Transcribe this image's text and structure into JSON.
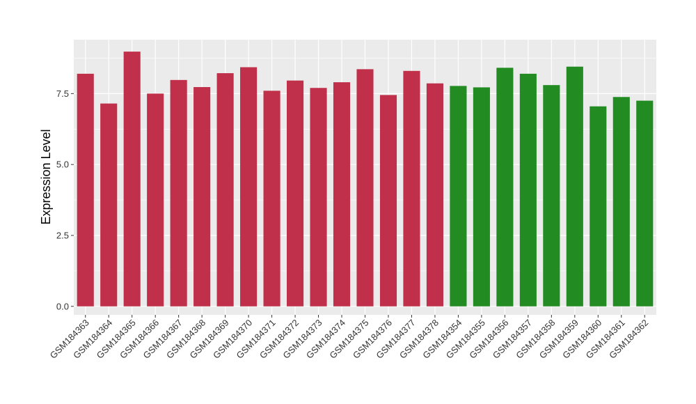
{
  "chart_data": {
    "type": "bar",
    "title": "",
    "xlabel": "",
    "ylabel": "Expression Level",
    "ylim": [
      -0.3,
      9.4
    ],
    "yticks": [
      "0.0",
      "2.5",
      "5.0",
      "7.5"
    ],
    "grid": true,
    "legend": "none",
    "colors": {
      "group1": "#C0304A",
      "group2": "#228B22",
      "panel": "#EBEBEB",
      "gridline": "#FFFFFF"
    },
    "categories": [
      "GSM184363",
      "GSM184364",
      "GSM184365",
      "GSM184366",
      "GSM184367",
      "GSM184368",
      "GSM184369",
      "GSM184370",
      "GSM184371",
      "GSM184372",
      "GSM184373",
      "GSM184374",
      "GSM184375",
      "GSM184376",
      "GSM184377",
      "GSM184378",
      "GSM184354",
      "GSM184355",
      "GSM184356",
      "GSM184357",
      "GSM184358",
      "GSM184359",
      "GSM184360",
      "GSM184361",
      "GSM184362"
    ],
    "values": [
      8.2,
      7.15,
      8.98,
      7.5,
      7.98,
      7.73,
      8.22,
      8.43,
      7.6,
      7.96,
      7.7,
      7.9,
      8.36,
      7.45,
      8.3,
      7.86,
      7.77,
      7.72,
      8.41,
      8.2,
      7.8,
      8.45,
      7.05,
      7.38,
      7.25
    ],
    "groups": [
      "group1",
      "group1",
      "group1",
      "group1",
      "group1",
      "group1",
      "group1",
      "group1",
      "group1",
      "group1",
      "group1",
      "group1",
      "group1",
      "group1",
      "group1",
      "group1",
      "group2",
      "group2",
      "group2",
      "group2",
      "group2",
      "group2",
      "group2",
      "group2",
      "group2"
    ]
  }
}
